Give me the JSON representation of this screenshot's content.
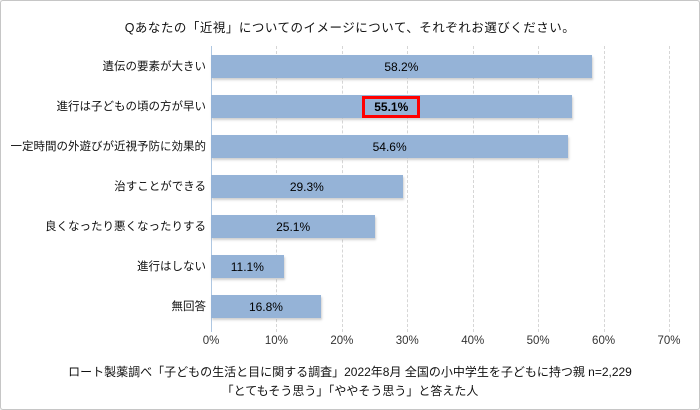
{
  "chart_data": {
    "type": "bar",
    "orientation": "horizontal",
    "title": "Qあなたの「近視」についてのイメージについて、それぞれお選びください。",
    "categories": [
      "遺伝の要素が大きい",
      "進行は子どもの頃の方が早い",
      "一定時間の外遊びが近視予防に効果的",
      "治すことができる",
      "良くなったり悪くなったりする",
      "進行はしない",
      "無回答"
    ],
    "values": [
      58.2,
      55.1,
      54.6,
      29.3,
      25.1,
      11.1,
      16.8
    ],
    "value_labels": [
      "58.2%",
      "55.1%",
      "54.6%",
      "29.3%",
      "25.1%",
      "11.1%",
      "16.8%"
    ],
    "highlighted_index": 1,
    "xlim": [
      0,
      70
    ],
    "x_ticks": [
      "0%",
      "10%",
      "20%",
      "30%",
      "40%",
      "50%",
      "60%",
      "70%"
    ],
    "grid": "vertical-dashed",
    "legend": "none",
    "bar_color": "#95B3D7",
    "gridline_color": "#D6D6D6",
    "highlight_box_color": "#FF0000"
  },
  "footer": {
    "line1": "ロート製薬調べ「子どもの生活と目に関する調査」2022年8月 全国の小中学生を子どもに持つ親 n=2,229",
    "line2": "「とてもそう思う」「ややそう思う」と答えた人"
  }
}
